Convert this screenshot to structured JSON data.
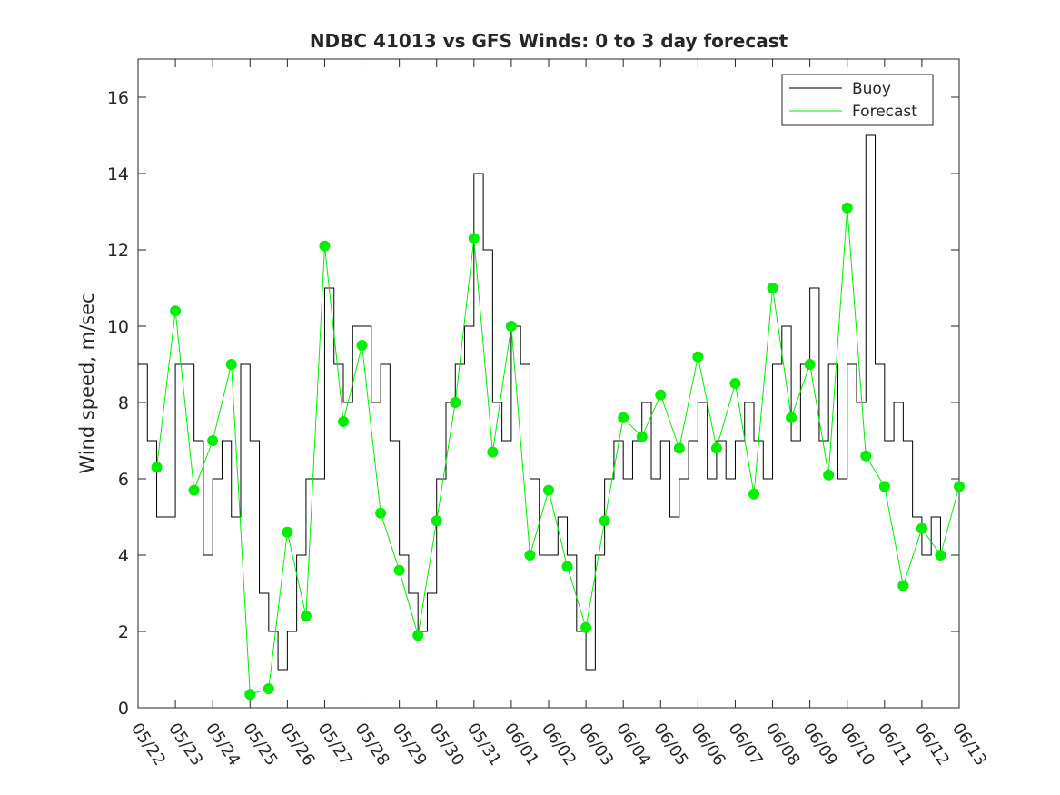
{
  "chart_data": {
    "type": "line",
    "title": "NDBC 41013 vs GFS Winds: 0 to 3 day forecast",
    "xlabel": "",
    "ylabel": "Wind speed, m/sec",
    "ylim": [
      0,
      17
    ],
    "yticks": [
      0,
      2,
      4,
      6,
      8,
      10,
      12,
      14,
      16
    ],
    "xlim": [
      0,
      22
    ],
    "x_tick_labels": [
      "05/22",
      "05/23",
      "05/24",
      "05/25",
      "05/26",
      "05/27",
      "05/28",
      "05/29",
      "05/30",
      "05/31",
      "06/01",
      "06/02",
      "06/03",
      "06/04",
      "06/05",
      "06/06",
      "06/07",
      "06/08",
      "06/09",
      "06/10",
      "06/11",
      "06/12",
      "06/13"
    ],
    "legend_position": "top-right",
    "grid": false,
    "series": [
      {
        "name": "Buoy",
        "color": "#000000",
        "x": [
          0.0,
          0.25,
          0.5,
          0.75,
          1.0,
          1.25,
          1.5,
          1.75,
          2.0,
          2.25,
          2.5,
          2.75,
          3.0,
          3.25,
          3.5,
          3.75,
          4.0,
          4.25,
          4.5,
          4.75,
          5.0,
          5.25,
          5.5,
          5.75,
          6.0,
          6.25,
          6.5,
          6.75,
          7.0,
          7.25,
          7.5,
          7.75,
          8.0,
          8.25,
          8.5,
          8.75,
          9.0,
          9.25,
          9.5,
          9.75,
          10.0,
          10.25,
          10.5,
          10.75,
          11.0,
          11.25,
          11.5,
          11.75,
          12.0,
          12.25,
          12.5,
          12.75,
          13.0,
          13.25,
          13.5,
          13.75,
          14.0,
          14.25,
          14.5,
          14.75,
          15.0,
          15.25,
          15.5,
          15.75,
          16.0,
          16.25,
          16.5,
          16.75,
          17.0,
          17.25,
          17.5,
          17.75,
          18.0,
          18.25,
          18.5,
          18.75,
          19.0,
          19.25,
          19.5,
          19.75,
          20.0,
          20.25,
          20.5,
          20.75,
          21.0,
          21.25,
          21.5
        ],
        "values": [
          9,
          7,
          5,
          5,
          9,
          9,
          7,
          4,
          6,
          7,
          5,
          9,
          7,
          3,
          2,
          1,
          2,
          4,
          6,
          6,
          11,
          9,
          8,
          10,
          10,
          8,
          9,
          7,
          4,
          3,
          2,
          3,
          6,
          8,
          9,
          10,
          14,
          12,
          8,
          7,
          10,
          9,
          6,
          4,
          4,
          5,
          4,
          2,
          1,
          4,
          6,
          7,
          6,
          7,
          8,
          6,
          7,
          5,
          6,
          7,
          8,
          6,
          7,
          6,
          7,
          8,
          7,
          6,
          9,
          10,
          7,
          9,
          11,
          7,
          9,
          6,
          9,
          8,
          15,
          9,
          7,
          8,
          7,
          5,
          4,
          5,
          4
        ]
      },
      {
        "name": "Forecast",
        "color": "#00ee00",
        "x": [
          0.5,
          1.0,
          1.5,
          2.0,
          2.5,
          3.0,
          3.5,
          4.0,
          4.5,
          5.0,
          5.5,
          6.0,
          6.5,
          7.0,
          7.5,
          8.0,
          8.5,
          9.0,
          9.5,
          10.0,
          10.5,
          11.0,
          11.5,
          12.0,
          12.5,
          13.0,
          13.5,
          14.0,
          14.5,
          15.0,
          15.5,
          16.0,
          16.5,
          17.0,
          17.5,
          18.0,
          18.5,
          19.0,
          19.5,
          20.0,
          20.5,
          21.0,
          21.5,
          22.0
        ],
        "values": [
          6.3,
          10.4,
          5.7,
          7.0,
          9.0,
          0.35,
          0.5,
          4.6,
          2.4,
          12.1,
          7.5,
          9.5,
          5.1,
          3.6,
          1.9,
          4.9,
          8.0,
          12.3,
          6.7,
          10.0,
          4.0,
          5.7,
          3.7,
          2.1,
          4.9,
          7.6,
          7.1,
          8.2,
          6.8,
          9.2,
          6.8,
          8.5,
          5.6,
          11.0,
          7.6,
          9.0,
          6.1,
          13.1,
          6.6,
          5.8,
          3.2,
          4.7,
          4.0,
          5.8
        ]
      }
    ]
  }
}
